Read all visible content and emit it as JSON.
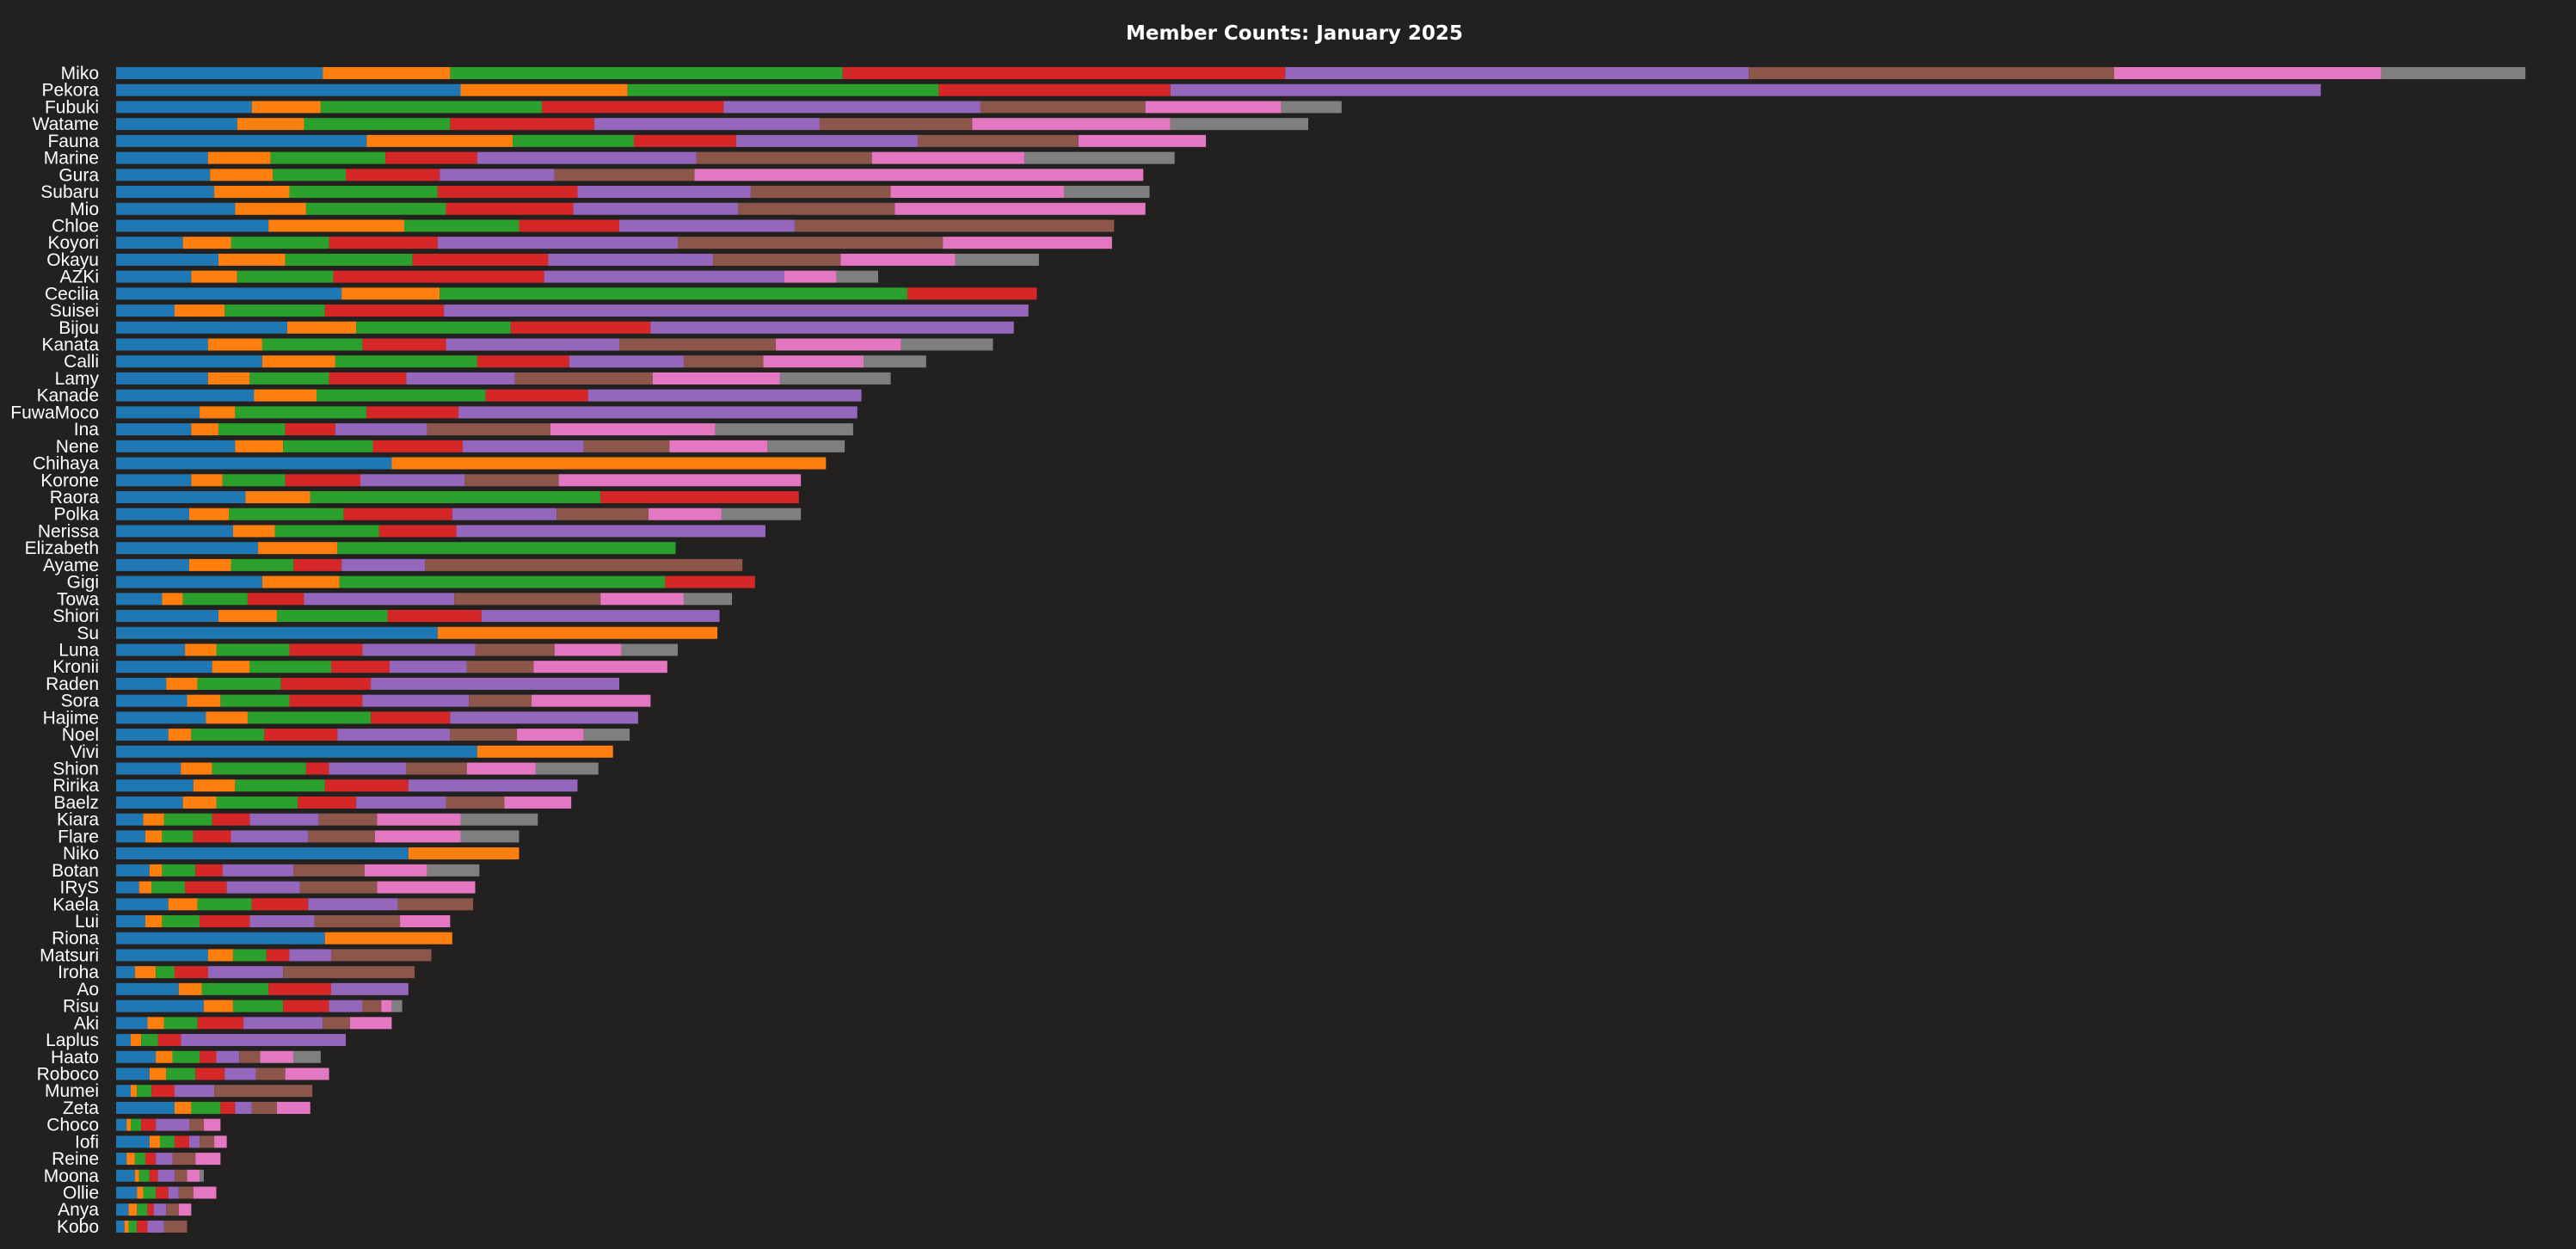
{
  "chart_data": {
    "type": "bar",
    "orientation": "horizontal",
    "stacked": true,
    "title": "Member Counts: January 2025",
    "xlabel": "",
    "ylabel": "",
    "xlim": [
      0,
      1170
    ],
    "grid": false,
    "legend": "none",
    "colors": [
      "#1f77b4",
      "#ff7f0e",
      "#2ca02c",
      "#d62728",
      "#9467bd",
      "#8c564b",
      "#e377c2",
      "#7f7f7f"
    ],
    "categories": [
      "Miko",
      "Pekora",
      "Fubuki",
      "Watame",
      "Fauna",
      "Marine",
      "Gura",
      "Subaru",
      "Mio",
      "Chloe",
      "Koyori",
      "Okayu",
      "AZKi",
      "Cecilia",
      "Suisei",
      "Bijou",
      "Kanata",
      "Calli",
      "Lamy",
      "Kanade",
      "FuwaMoco",
      "Ina",
      "Nene",
      "Chihaya",
      "Korone",
      "Raora",
      "Polka",
      "Nerissa",
      "Elizabeth",
      "Ayame",
      "Gigi",
      "Towa",
      "Shiori",
      "Su",
      "Luna",
      "Kronii",
      "Raden",
      "Sora",
      "Hajime",
      "Noel",
      "Vivi",
      "Shion",
      "Ririka",
      "Baelz",
      "Kiara",
      "Flare",
      "Niko",
      "Botan",
      "IRyS",
      "Kaela",
      "Lui",
      "Riona",
      "Matsuri",
      "Iroha",
      "Ao",
      "Risu",
      "Aki",
      "Laplus",
      "Haato",
      "Roboco",
      "Mumei",
      "Zeta",
      "Choco",
      "Iofi",
      "Reine",
      "Moona",
      "Ollie",
      "Anya",
      "Kobo"
    ],
    "segments": [
      [
        99,
        61,
        188,
        212,
        222,
        175,
        128,
        69
      ],
      [
        165,
        80,
        149,
        111,
        551,
        0,
        0,
        0
      ],
      [
        65,
        33,
        106,
        87,
        123,
        79,
        65,
        29
      ],
      [
        58,
        32,
        70,
        69,
        108,
        73,
        95,
        66
      ],
      [
        120,
        70,
        58,
        49,
        87,
        77,
        61,
        0
      ],
      [
        44,
        30,
        55,
        44,
        105,
        84,
        73,
        72
      ],
      [
        45,
        30,
        35,
        45,
        55,
        67,
        215,
        0
      ],
      [
        47,
        36,
        71,
        67,
        83,
        67,
        83,
        41
      ],
      [
        57,
        34,
        67,
        61,
        79,
        75,
        120,
        0
      ],
      [
        73,
        65,
        55,
        48,
        84,
        153,
        0,
        0
      ],
      [
        32,
        23,
        47,
        52,
        115,
        127,
        81,
        0
      ],
      [
        49,
        32,
        61,
        65,
        79,
        61,
        55,
        40
      ],
      [
        36,
        22,
        46,
        101,
        115,
        0,
        25,
        20
      ],
      [
        108,
        47,
        224,
        62,
        0,
        0,
        0,
        0
      ],
      [
        28,
        24,
        48,
        57,
        280,
        0,
        0,
        0
      ],
      [
        82,
        33,
        74,
        67,
        174,
        0,
        0,
        0
      ],
      [
        44,
        26,
        48,
        40,
        83,
        75,
        60,
        44
      ],
      [
        70,
        35,
        68,
        44,
        55,
        38,
        48,
        30
      ],
      [
        44,
        20,
        38,
        37,
        52,
        66,
        61,
        53
      ],
      [
        66,
        30,
        81,
        49,
        131,
        0,
        0,
        0
      ],
      [
        40,
        17,
        63,
        44,
        191,
        0,
        0,
        0
      ],
      [
        36,
        13,
        32,
        24,
        44,
        59,
        79,
        66
      ],
      [
        57,
        23,
        43,
        43,
        58,
        41,
        47,
        37
      ],
      [
        132,
        208,
        0,
        0,
        0,
        0,
        0,
        0
      ],
      [
        36,
        15,
        30,
        36,
        50,
        45,
        116,
        0
      ],
      [
        62,
        31,
        139,
        95,
        0,
        0,
        0,
        0
      ],
      [
        35,
        19,
        55,
        52,
        50,
        44,
        35,
        38
      ],
      [
        56,
        20,
        50,
        37,
        148,
        0,
        0,
        0
      ],
      [
        68,
        38,
        162,
        0,
        0,
        0,
        0,
        0
      ],
      [
        35,
        20,
        30,
        23,
        40,
        152,
        0,
        0
      ],
      [
        70,
        37,
        156,
        43,
        0,
        0,
        0,
        0
      ],
      [
        22,
        10,
        31,
        27,
        72,
        70,
        40,
        23
      ],
      [
        49,
        28,
        53,
        45,
        114,
        0,
        0,
        0
      ],
      [
        154,
        134,
        0,
        0,
        0,
        0,
        0,
        0
      ],
      [
        33,
        15,
        35,
        35,
        54,
        38,
        32,
        27
      ],
      [
        46,
        18,
        39,
        28,
        37,
        32,
        64,
        0
      ],
      [
        24,
        15,
        40,
        43,
        119,
        0,
        0,
        0
      ],
      [
        34,
        16,
        33,
        35,
        51,
        30,
        57,
        0
      ],
      [
        43,
        20,
        59,
        38,
        90,
        0,
        0,
        0
      ],
      [
        25,
        11,
        35,
        35,
        54,
        32,
        32,
        22
      ],
      [
        173,
        65,
        0,
        0,
        0,
        0,
        0,
        0
      ],
      [
        31,
        15,
        45,
        11,
        37,
        29,
        33,
        30
      ],
      [
        37,
        20,
        43,
        40,
        81,
        0,
        0,
        0
      ],
      [
        32,
        16,
        39,
        28,
        43,
        28,
        32,
        0
      ],
      [
        13,
        10,
        23,
        18,
        33,
        28,
        40,
        37
      ],
      [
        14,
        8,
        15,
        18,
        37,
        32,
        41,
        28
      ],
      [
        140,
        53,
        0,
        0,
        0,
        0,
        0,
        0
      ],
      [
        16,
        6,
        16,
        13,
        34,
        34,
        30,
        25
      ],
      [
        11,
        6,
        16,
        20,
        35,
        37,
        47,
        0
      ],
      [
        25,
        14,
        26,
        27,
        43,
        36,
        0,
        0
      ],
      [
        14,
        8,
        18,
        24,
        31,
        41,
        24,
        0
      ],
      [
        100,
        61,
        0,
        0,
        0,
        0,
        0,
        0
      ],
      [
        44,
        12,
        16,
        11,
        20,
        48,
        0,
        0
      ],
      [
        9,
        10,
        9,
        16,
        36,
        63,
        0,
        0
      ],
      [
        30,
        11,
        32,
        30,
        37,
        0,
        0,
        0
      ],
      [
        42,
        14,
        24,
        22,
        16,
        9,
        5,
        5
      ],
      [
        15,
        8,
        16,
        22,
        38,
        13,
        20,
        0
      ],
      [
        7,
        5,
        8,
        11,
        79,
        0,
        0,
        0
      ],
      [
        19,
        8,
        13,
        8,
        11,
        10,
        16,
        13
      ],
      [
        16,
        8,
        14,
        14,
        15,
        14,
        21,
        0
      ],
      [
        7,
        3,
        7,
        11,
        19,
        47,
        0,
        0
      ],
      [
        28,
        8,
        14,
        7,
        8,
        12,
        16,
        0
      ],
      [
        5,
        2,
        5,
        7,
        16,
        7,
        8,
        0
      ],
      [
        16,
        5,
        7,
        7,
        5,
        7,
        6,
        0
      ],
      [
        5,
        4,
        5,
        5,
        8,
        11,
        12,
        0
      ],
      [
        9,
        2,
        5,
        4,
        8,
        6,
        6,
        2
      ],
      [
        10,
        3,
        6,
        6,
        5,
        7,
        11,
        0
      ],
      [
        6,
        4,
        5,
        3,
        6,
        6,
        6,
        0
      ],
      [
        4,
        2,
        4,
        5,
        8,
        11,
        0,
        0
      ]
    ]
  }
}
